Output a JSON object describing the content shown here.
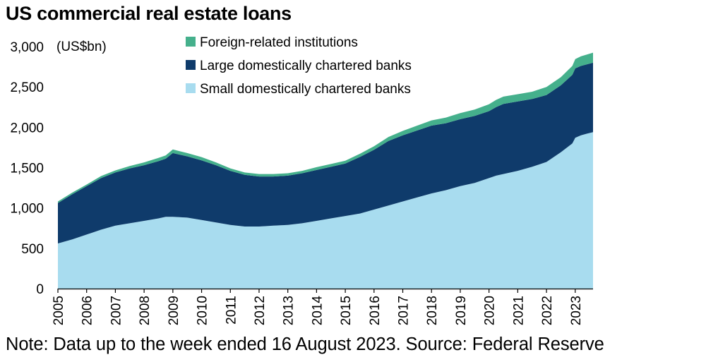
{
  "title": "US commercial real estate loans",
  "note": "Note: Data up to the week ended 16 August 2023. Source: Federal Reserve",
  "colors": {
    "foreign": "#45b08c",
    "large": "#0f3b6b",
    "small": "#a8dcef",
    "axis": "#000000"
  },
  "chart_data": {
    "type": "area",
    "stacked": true,
    "unit_label": "(US$bn)",
    "ylim": [
      0,
      3000
    ],
    "yticks": [
      0,
      500,
      1000,
      1500,
      2000,
      2500,
      3000
    ],
    "ytick_labels": [
      "0",
      "500",
      "1,000",
      "1,500",
      "2,000",
      "2,500",
      "3,000"
    ],
    "xlim": [
      2005,
      2023.62
    ],
    "xticks": [
      2005,
      2006,
      2007,
      2008,
      2009,
      2010,
      2011,
      2012,
      2013,
      2014,
      2015,
      2016,
      2017,
      2018,
      2019,
      2020,
      2021,
      2022,
      2023
    ],
    "xtick_labels": [
      "2005",
      "2006",
      "2007",
      "2008",
      "2009",
      "2010",
      "2011",
      "2012",
      "2013",
      "2014",
      "2015",
      "2016",
      "2017",
      "2018",
      "2019",
      "2020",
      "2021",
      "2022",
      "2023"
    ],
    "legend_position": "top-center",
    "grid": false,
    "x": [
      2005.0,
      2005.5,
      2006.0,
      2006.5,
      2007.0,
      2007.5,
      2008.0,
      2008.5,
      2008.75,
      2009.0,
      2009.5,
      2010.0,
      2010.5,
      2011.0,
      2011.5,
      2012.0,
      2012.5,
      2013.0,
      2013.5,
      2014.0,
      2014.5,
      2015.0,
      2015.5,
      2016.0,
      2016.5,
      2017.0,
      2017.5,
      2018.0,
      2018.5,
      2019.0,
      2019.5,
      2020.0,
      2020.25,
      2020.5,
      2021.0,
      2021.5,
      2022.0,
      2022.5,
      2022.9,
      2023.0,
      2023.2,
      2023.4,
      2023.62
    ],
    "series": [
      {
        "name": "Small domestically chartered banks",
        "values": [
          560,
          610,
          670,
          730,
          780,
          810,
          840,
          870,
          890,
          890,
          880,
          850,
          820,
          790,
          770,
          770,
          780,
          790,
          810,
          840,
          870,
          900,
          930,
          980,
          1030,
          1080,
          1130,
          1180,
          1220,
          1270,
          1310,
          1370,
          1400,
          1420,
          1460,
          1510,
          1570,
          1690,
          1800,
          1870,
          1900,
          1920,
          1940
        ]
      },
      {
        "name": "Large domestically chartered banks",
        "values": [
          500,
          560,
          600,
          640,
          660,
          680,
          690,
          710,
          720,
          790,
          760,
          740,
          710,
          670,
          640,
          620,
          610,
          610,
          620,
          630,
          640,
          650,
          700,
          740,
          800,
          820,
          830,
          840,
          830,
          830,
          830,
          830,
          850,
          870,
          860,
          840,
          830,
          830,
          850,
          860,
          860,
          860,
          860
        ]
      },
      {
        "name": "Foreign-related institutions",
        "values": [
          20,
          20,
          20,
          25,
          25,
          30,
          35,
          40,
          40,
          45,
          40,
          40,
          35,
          30,
          30,
          30,
          30,
          30,
          30,
          35,
          35,
          35,
          40,
          45,
          50,
          55,
          60,
          65,
          70,
          75,
          80,
          85,
          90,
          90,
          90,
          90,
          100,
          100,
          110,
          115,
          120,
          120,
          125
        ]
      }
    ]
  }
}
